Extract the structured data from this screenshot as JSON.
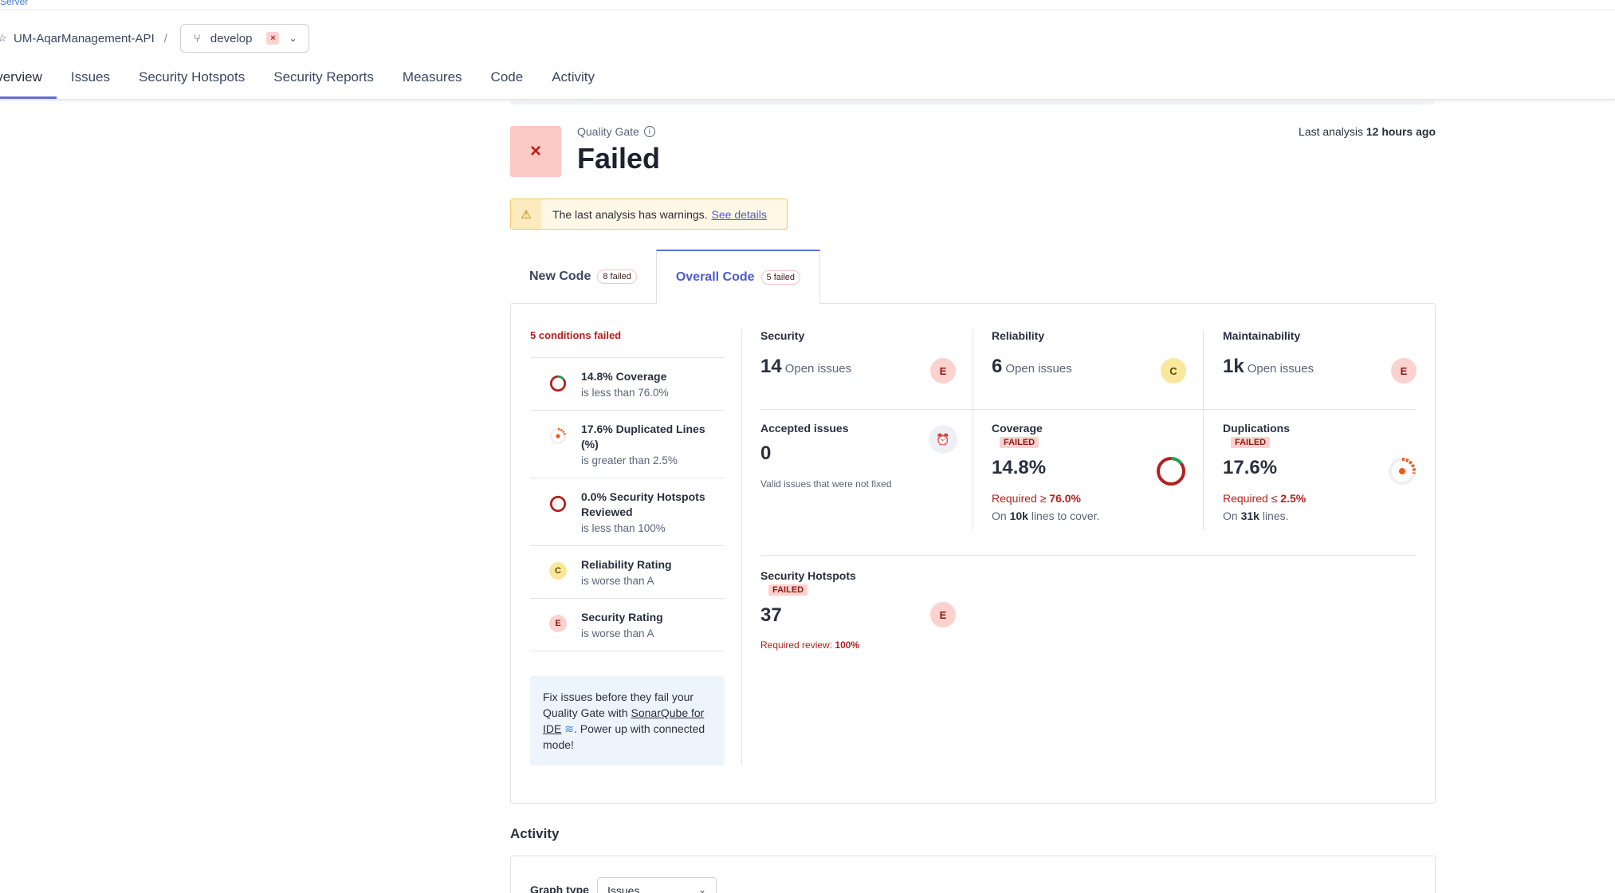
{
  "header": {
    "logo_fragment": "Server",
    "project": "UM-AqarManagement-API",
    "separator": "/",
    "branch": "develop",
    "branch_status_icon": "×"
  },
  "nav": {
    "tabs": [
      {
        "label": "Overview",
        "active": true
      },
      {
        "label": "Issues"
      },
      {
        "label": "Security Hotspots"
      },
      {
        "label": "Security Reports"
      },
      {
        "label": "Measures"
      },
      {
        "label": "Code"
      },
      {
        "label": "Activity"
      }
    ]
  },
  "quality_gate": {
    "label": "Quality Gate",
    "status": "Failed",
    "icon": "×",
    "last_analysis_prefix": "Last analysis",
    "last_analysis_value": "12 hours ago"
  },
  "warning": {
    "text": "The last analysis has warnings.",
    "link": "See details"
  },
  "code_tabs": [
    {
      "label": "New Code",
      "badge": "8 failed"
    },
    {
      "label": "Overall Code",
      "badge": "5 failed",
      "active": true
    }
  ],
  "conditions": {
    "title": "5 conditions failed",
    "items": [
      {
        "l1": "14.8% Coverage",
        "l2": "is less than 76.0%"
      },
      {
        "l1": "17.6% Duplicated Lines (%)",
        "l2": "is greater than 2.5%"
      },
      {
        "l1": "0.0% Security Hotspots Reviewed",
        "l2": "is less than 100%"
      },
      {
        "l1": "Reliability Rating",
        "l2": "is worse than A",
        "badge": "C"
      },
      {
        "l1": "Security Rating",
        "l2": "is worse than A",
        "badge": "E"
      }
    ]
  },
  "ide_tip": {
    "p1": "Fix issues before they fail your Quality Gate with ",
    "link": "SonarQube for IDE",
    "p2": ". Power up with connected mode!"
  },
  "metrics": {
    "security": {
      "title": "Security",
      "value": "14",
      "sub": "Open issues",
      "rating": "E"
    },
    "reliability": {
      "title": "Reliability",
      "value": "6",
      "sub": "Open issues",
      "rating": "C"
    },
    "maintainability": {
      "title": "Maintainability",
      "value": "1k",
      "sub": "Open issues",
      "rating": "E"
    },
    "accepted": {
      "title": "Accepted issues",
      "value": "0",
      "note": "Valid issues that were not fixed"
    },
    "coverage": {
      "title": "Coverage",
      "failed": "FAILED",
      "value": "14.8%",
      "req_prefix": "Required ≥",
      "req_value": "76.0%",
      "on_prefix": "On",
      "on_value": "10k",
      "on_suffix": "lines to cover.",
      "percent": 14.8
    },
    "duplications": {
      "title": "Duplications",
      "failed": "FAILED",
      "value": "17.6%",
      "req_prefix": "Required ≤",
      "req_value": "2.5%",
      "on_prefix": "On",
      "on_value": "31k",
      "on_suffix": "lines.",
      "percent": 17.6
    },
    "hotspots": {
      "title": "Security Hotspots",
      "failed": "FAILED",
      "value": "37",
      "req_prefix": "Required review:",
      "req_value": "100%",
      "rating": "E"
    }
  },
  "activity": {
    "title": "Activity",
    "graph_label": "Graph type",
    "graph_value": "Issues"
  },
  "colors": {
    "accent": "#5f6fd7",
    "fail": "#b5201e",
    "rating_c": "#f9e79c",
    "rating_e": "#fbd2cd"
  }
}
